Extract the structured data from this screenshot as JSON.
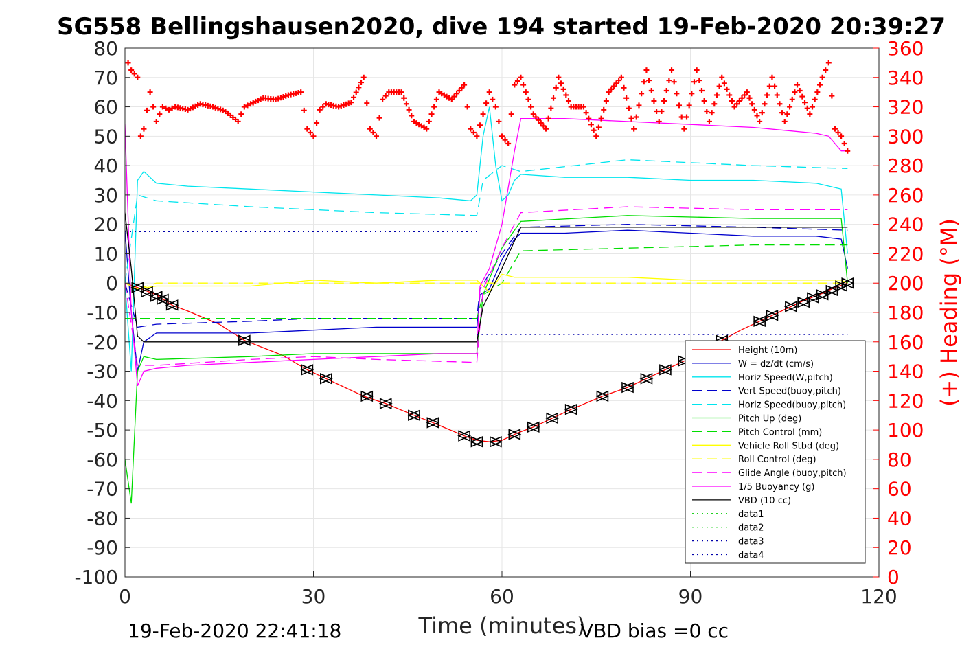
{
  "chart_data": {
    "type": "line",
    "title": "SG558 Bellingshausen2020, dive 194 started 19-Feb-2020 20:39:27",
    "xlabel": "Time (minutes)",
    "ylabel_right": "(+) Heading (°M)",
    "xlim": [
      0,
      120
    ],
    "ylim": [
      -100,
      80
    ],
    "ylim_right": [
      0,
      360
    ],
    "xticks": [
      "0",
      "30",
      "60",
      "90",
      "120"
    ],
    "yticks_left": [
      "80",
      "70",
      "60",
      "50",
      "40",
      "30",
      "20",
      "10",
      "0",
      "-10",
      "-20",
      "-30",
      "-40",
      "-50",
      "-60",
      "-70",
      "-80",
      "-90",
      "-100"
    ],
    "yticks_right": [
      "360",
      "340",
      "320",
      "300",
      "280",
      "260",
      "240",
      "220",
      "200",
      "180",
      "160",
      "140",
      "120",
      "100",
      "80",
      "60",
      "40",
      "20",
      "0"
    ],
    "grid": true,
    "legend_position": "lower-right",
    "footer_left": "19-Feb-2020 22:41:18",
    "footer_right": "VBD bias =0 cc",
    "colors": {
      "height": "#ff0000",
      "w": "#0000cc",
      "horiz_speed": "#00e5ee",
      "vert_speed_buoy": "#0000cc",
      "horiz_speed_buoy": "#00e5ee",
      "pitch": "#00dd00",
      "pitch_control": "#00dd00",
      "roll": "#ffff00",
      "roll_control": "#ffff00",
      "glide": "#ff00ff",
      "buoyancy": "#ff00ff",
      "vbd": "#000000",
      "heading": "#ff0000",
      "data": "#00cc00",
      "data_blue": "#0000aa"
    },
    "series": [
      {
        "name": "Height (10m)",
        "style": "solid",
        "color": "#ff0000",
        "x": [
          0,
          2,
          5,
          7.5,
          10,
          15,
          19,
          25,
          29,
          32,
          38,
          41.5,
          46,
          49,
          54,
          56,
          58,
          60,
          62.5,
          65,
          68,
          71,
          76,
          80,
          83,
          86,
          89,
          92,
          95,
          98,
          101,
          104,
          108,
          111,
          113,
          115
        ],
        "y": [
          0,
          -1.5,
          -4,
          -7.5,
          -9.5,
          -14,
          -19.5,
          -24.5,
          -29.5,
          -32.5,
          -38.5,
          -41,
          -45,
          -47.5,
          -52,
          -53.5,
          -54,
          -53.5,
          -51,
          -49,
          -46,
          -43,
          -38.5,
          -35.5,
          -32.5,
          -29.5,
          -26.5,
          -24,
          -19.5,
          -16,
          -13,
          -10,
          -6,
          -3.5,
          -1.5,
          0
        ]
      },
      {
        "name": "W = dz/dt (cm/s)",
        "style": "solid",
        "color": "#0000cc",
        "x": [
          0,
          1,
          2,
          3,
          5,
          10,
          20,
          30,
          40,
          50,
          56,
          56.5,
          58,
          60,
          62,
          63,
          70,
          80,
          90,
          100,
          110,
          114,
          115
        ],
        "y": [
          18,
          -10,
          -30,
          -20,
          -17,
          -17,
          -17,
          -16,
          -15,
          -15,
          -15,
          -4,
          -2,
          8,
          15,
          17,
          17,
          18,
          17,
          16,
          16,
          15,
          5
        ]
      },
      {
        "name": "Horiz Speed(W,pitch)",
        "style": "solid",
        "color": "#00e5ee",
        "x": [
          0,
          1,
          2,
          3,
          5,
          10,
          20,
          30,
          40,
          50,
          55,
          56,
          57,
          58,
          59,
          60,
          61,
          62,
          63,
          70,
          80,
          90,
          100,
          110,
          114,
          115
        ],
        "y": [
          0,
          -30,
          35,
          38,
          34,
          33,
          32,
          31,
          30,
          29,
          28,
          30,
          50,
          60,
          40,
          28,
          30,
          35,
          37,
          36,
          36,
          35,
          35,
          34,
          32,
          10
        ]
      },
      {
        "name": "Vert Speed(buoy,pitch)",
        "style": "dash",
        "color": "#0000cc",
        "x": [
          0,
          2,
          5,
          20,
          30,
          40,
          56,
          56.5,
          60,
          63,
          80,
          100,
          115
        ],
        "y": [
          0,
          -15,
          -14,
          -13,
          -12,
          -12,
          -12,
          -2,
          10,
          19,
          20,
          19,
          18
        ]
      },
      {
        "name": "Horiz Speed(buoy,pitch)",
        "style": "dash",
        "color": "#00e5ee",
        "x": [
          0,
          2,
          5,
          20,
          40,
          56,
          57,
          60,
          63,
          80,
          100,
          115
        ],
        "y": [
          0,
          30,
          28,
          26,
          24,
          23,
          35,
          40,
          38,
          42,
          40,
          39
        ]
      },
      {
        "name": "Pitch Up (deg)",
        "style": "solid",
        "color": "#00dd00",
        "x": [
          0,
          1,
          2,
          3,
          5,
          20,
          30,
          40,
          56,
          57,
          60,
          63,
          80,
          100,
          114,
          115
        ],
        "y": [
          -60,
          -75,
          -30,
          -25,
          -26,
          -25,
          -24,
          -24,
          -24,
          -4,
          12,
          21,
          23,
          22,
          22,
          0
        ]
      },
      {
        "name": "Pitch Control (mm)",
        "style": "dash",
        "color": "#00dd00",
        "x": [
          0,
          2,
          5,
          56,
          57,
          60,
          63,
          100,
          115
        ],
        "y": [
          -12,
          -12,
          -12,
          -12,
          -4,
          0,
          11,
          13,
          13
        ]
      },
      {
        "name": "Vehicle Roll Stbd (deg)",
        "style": "solid",
        "color": "#ffff00",
        "x": [
          0,
          2,
          5,
          10,
          20,
          30,
          40,
          50,
          56,
          58,
          60,
          62,
          70,
          80,
          90,
          100,
          110,
          114,
          115
        ],
        "y": [
          0,
          -2,
          -1,
          -1,
          -1,
          1,
          0,
          1,
          1,
          -3,
          3,
          2,
          2,
          2,
          1,
          1,
          1,
          1,
          0
        ]
      },
      {
        "name": "Roll Control (deg)",
        "style": "dash",
        "color": "#ffff00",
        "x": [
          0,
          2,
          5,
          56,
          60,
          115
        ],
        "y": [
          0,
          -2,
          0,
          0,
          0,
          0
        ]
      },
      {
        "name": "Glide Angle (buoy,pitch)",
        "style": "dash",
        "color": "#ff00ff",
        "x": [
          0,
          2,
          5,
          20,
          30,
          40,
          56,
          57,
          60,
          63,
          80,
          100,
          115
        ],
        "y": [
          0,
          -28,
          -28,
          -26,
          -25,
          -26,
          -27,
          -2,
          12,
          24,
          26,
          25,
          25
        ]
      },
      {
        "name": "1/5 Buoyancy (g)",
        "style": "solid",
        "color": "#ff00ff",
        "x": [
          0,
          1,
          2,
          3,
          5,
          10,
          20,
          30,
          40,
          50,
          56,
          56.5,
          58,
          60,
          62,
          63,
          70,
          80,
          90,
          100,
          110,
          112,
          114,
          115
        ],
        "y": [
          54,
          -10,
          -35,
          -30,
          -29,
          -28,
          -27,
          -26,
          -25,
          -24,
          -24,
          -1,
          5,
          20,
          45,
          56,
          56,
          55,
          54,
          53,
          51,
          50,
          45,
          45
        ]
      },
      {
        "name": "VBD (10 cc)",
        "style": "solid",
        "color": "#000000",
        "x": [
          0,
          1,
          2,
          3,
          56,
          57,
          60,
          63,
          115
        ],
        "y": [
          24,
          5,
          -18,
          -20,
          -20,
          -8,
          5,
          19,
          19
        ]
      },
      {
        "name": "data1",
        "style": "dot",
        "color": "#00cc00",
        "x": [],
        "y": []
      },
      {
        "name": "data2",
        "style": "dot",
        "color": "#00cc00",
        "x": [],
        "y": []
      },
      {
        "name": "data3",
        "style": "dot",
        "color": "#0000aa",
        "x": [
          0,
          56
        ],
        "y": [
          17.5,
          17.5
        ]
      },
      {
        "name": "data4",
        "style": "dot",
        "color": "#0000aa",
        "x": [
          56,
          115
        ],
        "y": [
          -17.5,
          -17.5
        ]
      }
    ],
    "heading": {
      "color": "#ff0000",
      "x": [
        0.5,
        1,
        2,
        2.5,
        3,
        4,
        5,
        6,
        7,
        8,
        10,
        12,
        14,
        16,
        18,
        19,
        20,
        22,
        24,
        26,
        28,
        29,
        30,
        31,
        32,
        34,
        36,
        38,
        39,
        40,
        41,
        42,
        44,
        46,
        48,
        50,
        52,
        54,
        55,
        56,
        57,
        58,
        59,
        60,
        61,
        62,
        63,
        65,
        67,
        69,
        71,
        73,
        75,
        77,
        79,
        81,
        83,
        85,
        87,
        89,
        91,
        93,
        95,
        97,
        99,
        101,
        103,
        105,
        107,
        109,
        111,
        112,
        113,
        114,
        115
      ],
      "y": [
        350,
        345,
        340,
        300,
        305,
        330,
        310,
        320,
        318,
        320,
        318,
        322,
        320,
        317,
        310,
        320,
        322,
        326,
        325,
        328,
        330,
        305,
        300,
        318,
        322,
        320,
        323,
        340,
        305,
        300,
        325,
        330,
        330,
        310,
        305,
        330,
        325,
        335,
        305,
        300,
        315,
        330,
        320,
        300,
        295,
        335,
        340,
        315,
        305,
        340,
        320,
        320,
        300,
        330,
        340,
        305,
        345,
        310,
        345,
        305,
        345,
        310,
        340,
        320,
        330,
        310,
        340,
        310,
        335,
        315,
        340,
        350,
        305,
        300,
        290
      ]
    },
    "height_markers": {
      "x": [
        2,
        3.5,
        5,
        6,
        7.5,
        19,
        29,
        32,
        38.5,
        41.5,
        46,
        49,
        54,
        56,
        59,
        62,
        65,
        68,
        71,
        76,
        80,
        83,
        86,
        89,
        92,
        95,
        101,
        103,
        106,
        108,
        109.5,
        111,
        112.5,
        114,
        115
      ],
      "y": [
        -1.5,
        -3,
        -4.5,
        -5.5,
        -7.5,
        -19.5,
        -29.5,
        -32.5,
        -38.5,
        -41,
        -45,
        -47.5,
        -52,
        -54,
        -54,
        -51.5,
        -49,
        -46,
        -43,
        -38.5,
        -35.5,
        -32.5,
        -29.5,
        -26.5,
        -24,
        -19.5,
        -13,
        -11,
        -8,
        -6.5,
        -5,
        -4,
        -2.5,
        -1,
        0
      ]
    }
  }
}
